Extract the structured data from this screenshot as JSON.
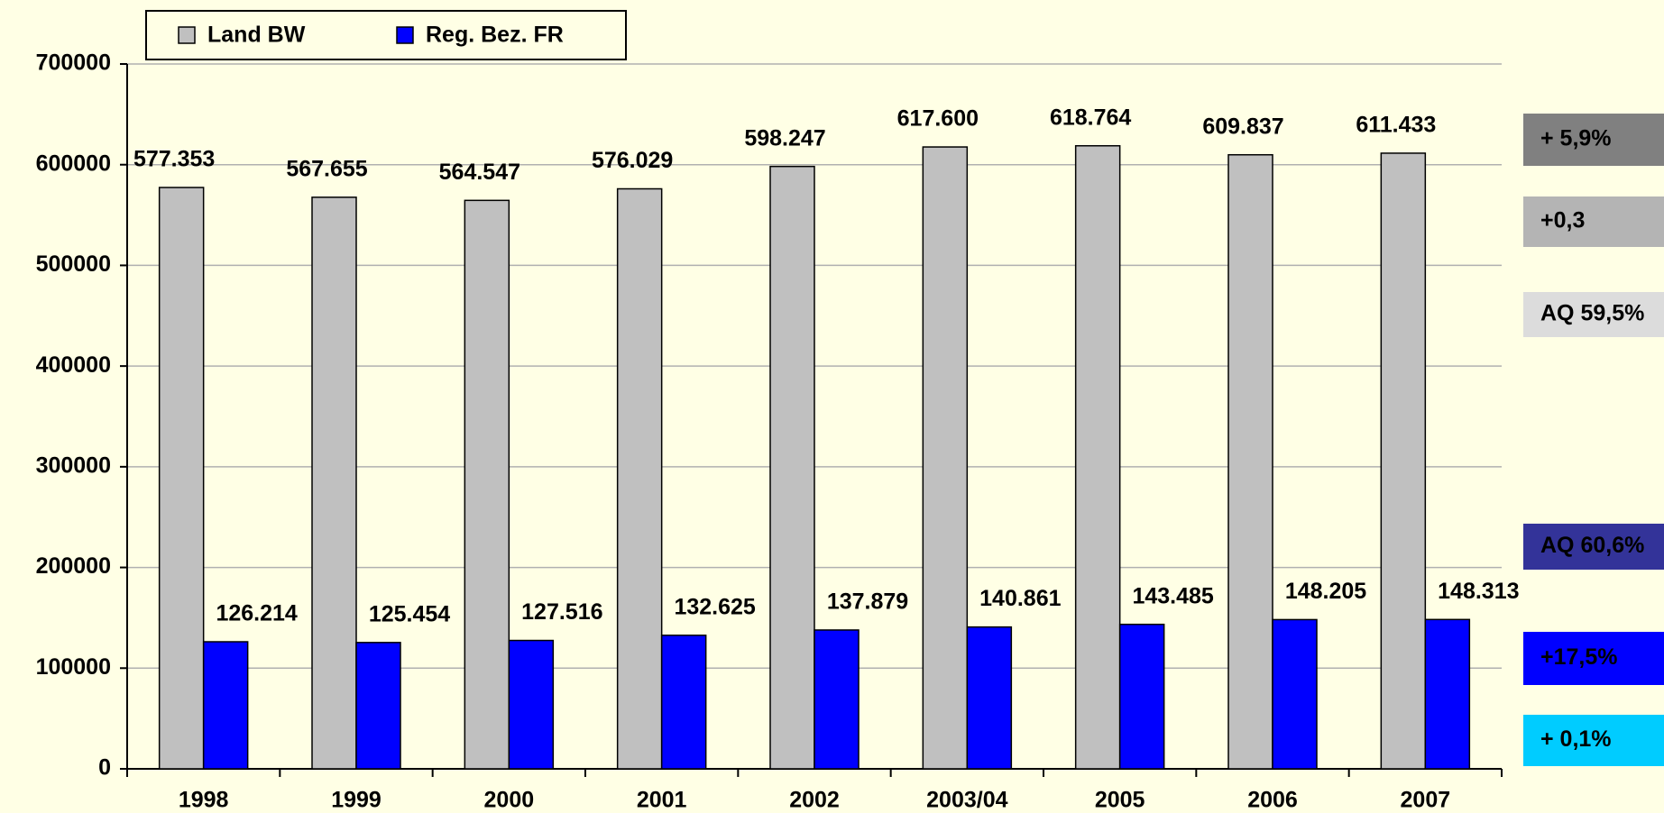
{
  "chart_data": {
    "type": "bar",
    "categories": [
      "1998",
      "1999",
      "2000",
      "2001",
      "2002",
      "2003/04",
      "2005",
      "2006",
      "2007"
    ],
    "series": [
      {
        "name": "Land BW",
        "color": "#c0c0c0",
        "values": [
          577353,
          567655,
          564547,
          576029,
          598247,
          617600,
          618764,
          609837,
          611433
        ],
        "value_labels": [
          "577.353",
          "567.655",
          "564.547",
          "576.029",
          "598.247",
          "617.600",
          "618.764",
          "609.837",
          "611.433"
        ]
      },
      {
        "name": "Reg. Bez. FR",
        "color": "#0000ff",
        "values": [
          126214,
          125454,
          127516,
          132625,
          137879,
          140861,
          143485,
          148205,
          148313
        ],
        "value_labels": [
          "126.214",
          "125.454",
          "127.516",
          "132.625",
          "137.879",
          "140.861",
          "143.485",
          "148.205",
          "148.313"
        ]
      }
    ],
    "ylim": [
      0,
      700000
    ],
    "yticks": [
      0,
      100000,
      200000,
      300000,
      400000,
      500000,
      600000,
      700000
    ],
    "grid": true,
    "legend": "top",
    "annotations": [
      {
        "text": "+ 5,9%",
        "color": "#808080",
        "text_color": "#ffffff"
      },
      {
        "text": "+0,3",
        "color": "#b4b4b4",
        "text_color": "#ffffff"
      },
      {
        "text": "AQ 59,5%",
        "color": "#dcdcdc",
        "text_color": "#000000"
      },
      {
        "text": "AQ 60,6%",
        "color": "#333399",
        "text_color": "#ffffff"
      },
      {
        "text": "+17,5%",
        "color": "#0000ff",
        "text_color": "#ffffff"
      },
      {
        "text": "+ 0,1%",
        "color": "#00ccff",
        "text_color": "#000000"
      }
    ]
  }
}
